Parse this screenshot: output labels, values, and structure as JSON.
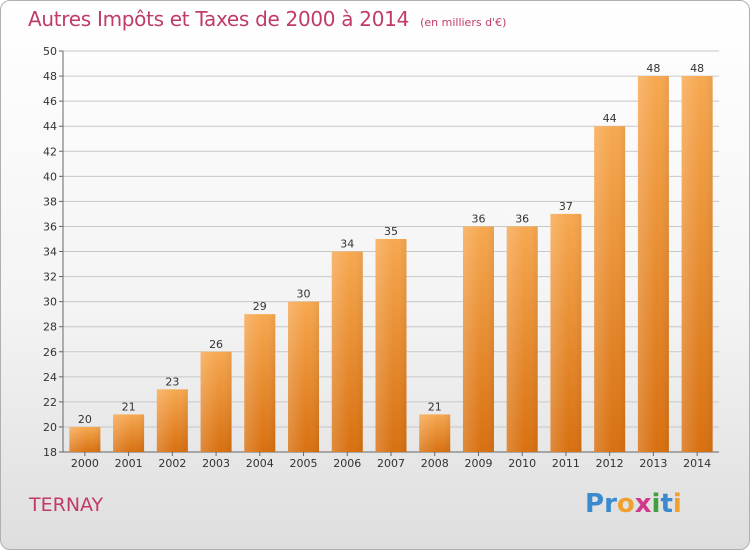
{
  "title": "Autres Impôts et Taxes de 2000 à 2014",
  "unit_note": "(en milliers d'€)",
  "town": "TERNAY",
  "logo": {
    "text": "Proxiti",
    "letters": [
      "P",
      "r",
      "o",
      "x",
      "i",
      "t",
      "i"
    ],
    "colors": [
      "#3a8ad0",
      "#3a8ad0",
      "#f0a030",
      "#d03a8a",
      "#40a040",
      "#3a8ad0",
      "#f0a030"
    ]
  },
  "colors": {
    "title": "#c03a6a",
    "bar_light": "#f7a850",
    "bar_dark": "#d87010"
  },
  "chart_data": {
    "type": "bar",
    "categories": [
      "2000",
      "2001",
      "2002",
      "2003",
      "2004",
      "2005",
      "2006",
      "2007",
      "2008",
      "2009",
      "2010",
      "2011",
      "2012",
      "2013",
      "2014"
    ],
    "values": [
      20,
      21,
      23,
      26,
      29,
      30,
      34,
      35,
      21,
      36,
      36,
      37,
      44,
      48,
      48
    ],
    "ylim": [
      18,
      50
    ],
    "yticks": [
      18,
      20,
      22,
      24,
      26,
      28,
      30,
      32,
      34,
      36,
      38,
      40,
      42,
      44,
      46,
      48,
      50
    ],
    "grid": true
  }
}
